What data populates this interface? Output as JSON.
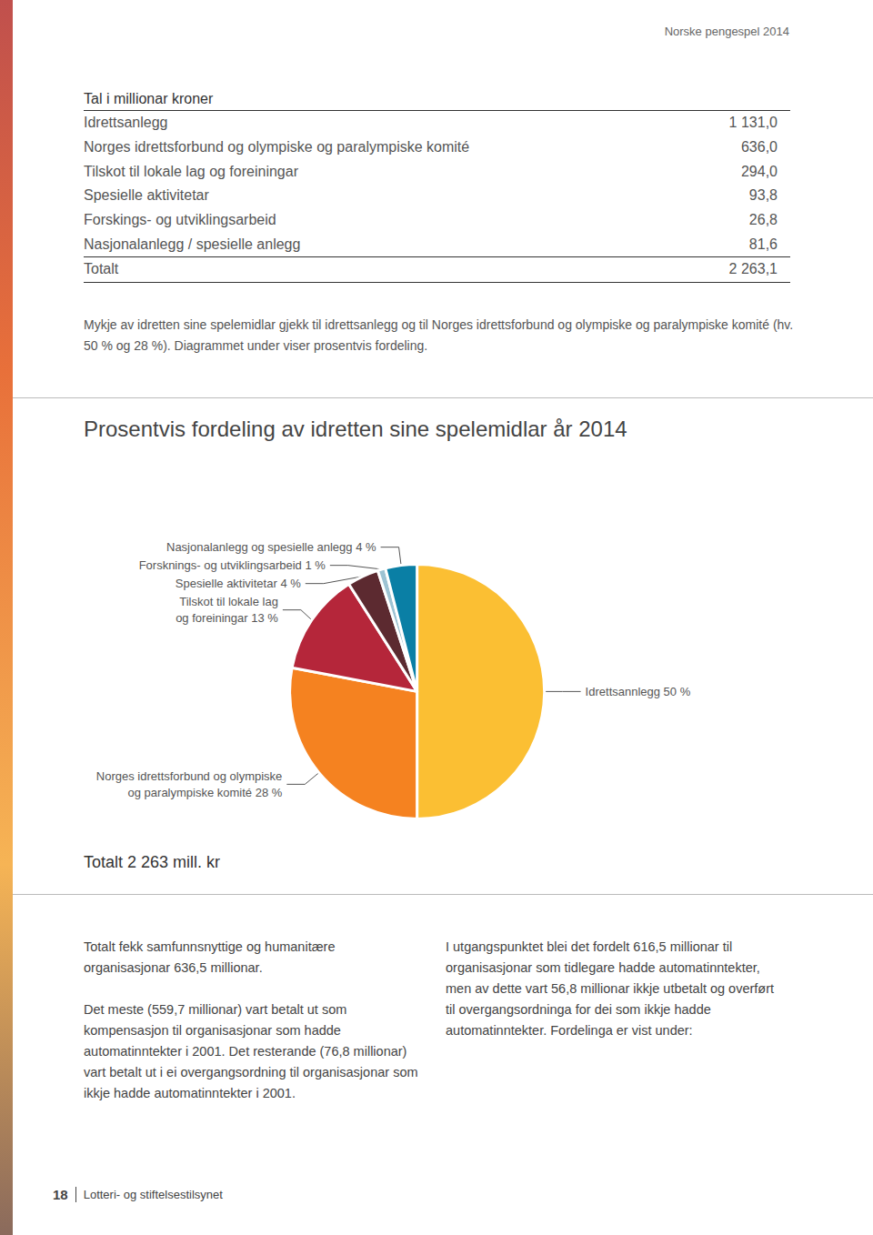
{
  "header": {
    "title": "Norske pengespel 2014"
  },
  "table": {
    "caption": "Tal i millionar kroner",
    "rows": [
      [
        "Idrettsanlegg",
        "1 131,0"
      ],
      [
        "Norges idrettsforbund og olympiske og paralympiske komité",
        "636,0"
      ],
      [
        "Tilskot til lokale lag og foreiningar",
        "294,0"
      ],
      [
        "Spesielle aktivitetar",
        "93,8"
      ],
      [
        "Forskings- og utviklingsarbeid",
        "26,8"
      ],
      [
        "Nasjonalanlegg / spesielle anlegg",
        "81,6"
      ]
    ],
    "total": [
      "Totalt",
      "2 263,1"
    ]
  },
  "intro": "Mykje av idretten sine spelemidlar gjekk til idrettsanlegg og til Norges idrettsforbund og olympiske og paralympiske komité (hv. 50 % og 28 %). Diagrammet under viser prosentvis fordeling.",
  "chart_data": {
    "type": "pie",
    "title": "Prosentvis fordeling av idretten sine spelemidlar år 2014",
    "categories": [
      "Idrettsannlegg 50 %",
      "Norges idrettsforbund og olympiske\nog paralympiske komité 28 %",
      "Tilskot til lokale lag\nog foreiningar 13 %",
      "Spesielle aktivitetar 4 %",
      "Forsknings- og utviklingsarbeid 1 %",
      "Nasjonalanlegg og spesielle anlegg 4 %"
    ],
    "values": [
      50,
      28,
      13,
      4,
      1,
      4
    ],
    "colors": [
      "#fbbf33",
      "#f58220",
      "#b5263a",
      "#5c2a30",
      "#9dc3d3",
      "#0a7fa5"
    ],
    "data_labels": true
  },
  "chart_total": "Totalt 2 263 mill. kr",
  "columns": [
    [
      "Totalt fekk samfunnsnyttige og humanitære organisasjonar 636,5 millionar.",
      "Det meste (559,7 millionar) vart betalt ut som kompensasjon til organisasjonar som hadde automatinntekter i 2001. Det resterande (76,8 millionar) vart betalt ut i ei overgangsordning til organisasjonar som ikkje hadde automatinntekter i 2001."
    ],
    [
      "I utgangspunktet blei det fordelt 616,5 millionar til organisasjonar som tidlegare hadde automatinntekter, men av dette vart 56,8 millionar ikkje utbetalt og overført til overgangsordninga for dei som ikkje hadde automatinntekter. Fordelinga er vist under:"
    ]
  ],
  "footer": {
    "page": "18",
    "publisher": "Lotteri- og stiftelsestilsynet"
  }
}
